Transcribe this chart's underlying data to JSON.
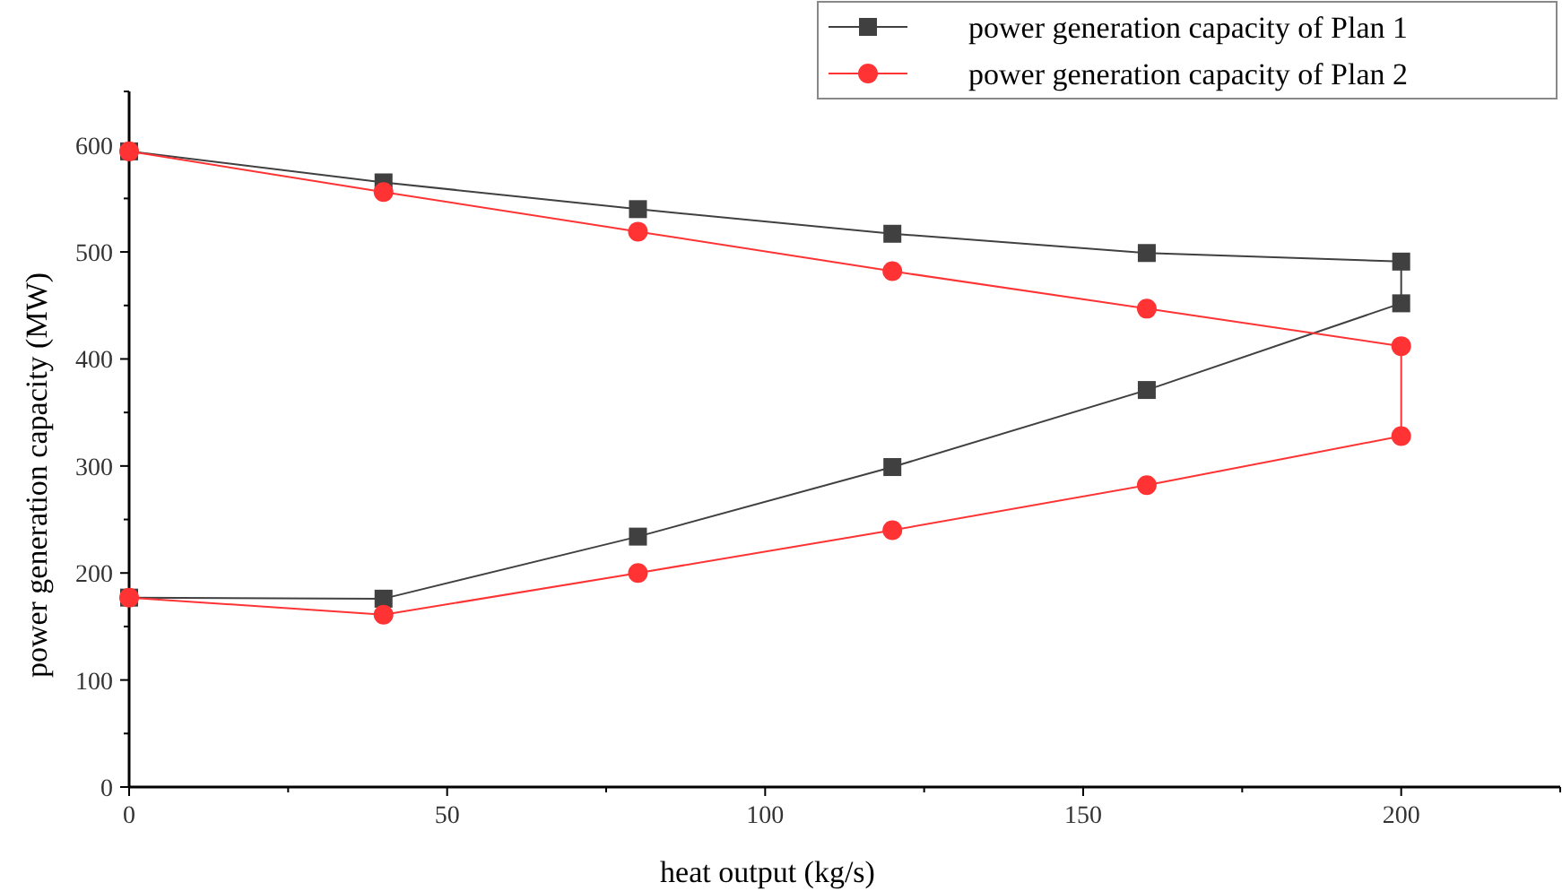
{
  "chart_data": {
    "type": "line",
    "xlabel": "heat output (kg/s)",
    "ylabel": "power generation capacity (MW)",
    "xlim": [
      0,
      225
    ],
    "ylim": [
      0,
      650
    ],
    "xticks": [
      0,
      {
        "value": 25,
        "label": null
      },
      50,
      {
        "value": 75,
        "label": null
      },
      100,
      {
        "value": 125,
        "label": null
      },
      150,
      {
        "value": 175,
        "label": null
      },
      200,
      {
        "value": 225,
        "label": null
      }
    ],
    "yticks": [
      0,
      {
        "value": 50,
        "label": null
      },
      100,
      {
        "value": 150,
        "label": null
      },
      200,
      {
        "value": 250,
        "label": null
      },
      300,
      {
        "value": 350,
        "label": null
      },
      400,
      {
        "value": 450,
        "label": null
      },
      500,
      {
        "value": 550,
        "label": null
      },
      600,
      {
        "value": 650,
        "label": null
      }
    ],
    "series": [
      {
        "name": "power generation capacity of Plan 1",
        "color": "#404040",
        "marker": "square",
        "x": [
          0,
          40,
          80,
          120,
          160,
          200,
          200,
          160,
          120,
          80,
          40,
          0
        ],
        "values": [
          594,
          565,
          540,
          517,
          499,
          491,
          452,
          371,
          299,
          234,
          176,
          177
        ]
      },
      {
        "name": "power generation capacity of Plan 2",
        "color": "#ff3333",
        "marker": "circle",
        "x": [
          0,
          40,
          80,
          120,
          160,
          200,
          200,
          160,
          120,
          80,
          40,
          0
        ],
        "values": [
          594,
          556,
          519,
          482,
          447,
          412,
          328,
          282,
          240,
          200,
          161,
          177
        ]
      }
    ],
    "legend": "top right",
    "grid": false
  }
}
